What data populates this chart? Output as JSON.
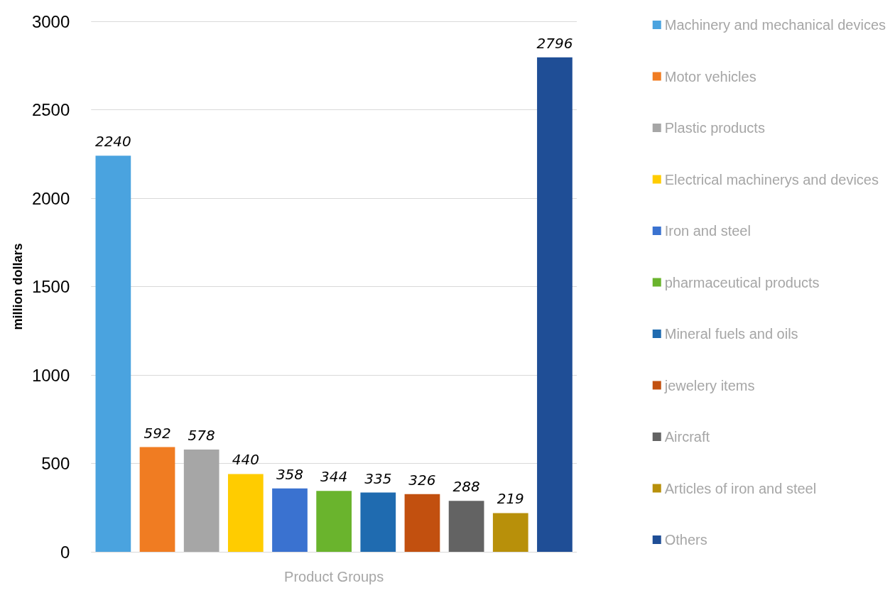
{
  "chart_data": {
    "type": "bar",
    "xlabel": "Product Groups",
    "ylabel": "million dollars",
    "categories": [
      null,
      null,
      null,
      null,
      null,
      null,
      null,
      null,
      null,
      null,
      null
    ],
    "series": [
      {
        "name": "Machinery and mechanical devices",
        "color": "#4aa3df",
        "values": [
          2240,
          null,
          null,
          null,
          null,
          null,
          null,
          null,
          null,
          null,
          null
        ]
      },
      {
        "name": "Motor vehicles",
        "color": "#f07c22",
        "values": [
          null,
          592,
          null,
          null,
          null,
          null,
          null,
          null,
          null,
          null,
          null
        ]
      },
      {
        "name": "Plastic products",
        "color": "#a6a6a6",
        "values": [
          null,
          null,
          578,
          null,
          null,
          null,
          null,
          null,
          null,
          null,
          null
        ]
      },
      {
        "name": "Electrical machinerys and devices",
        "color": "#ffcc00",
        "values": [
          null,
          null,
          null,
          440,
          null,
          null,
          null,
          null,
          null,
          null,
          null
        ]
      },
      {
        "name": "Iron and steel",
        "color": "#3a72d0",
        "values": [
          null,
          null,
          null,
          null,
          358,
          null,
          null,
          null,
          null,
          null,
          null
        ]
      },
      {
        "name": "pharmaceutical products",
        "color": "#6ab42d",
        "values": [
          null,
          null,
          null,
          null,
          null,
          344,
          null,
          null,
          null,
          null,
          null
        ]
      },
      {
        "name": "Mineral fuels and oils",
        "color": "#1f6bb0",
        "values": [
          null,
          null,
          null,
          null,
          null,
          null,
          335,
          null,
          null,
          null,
          null
        ]
      },
      {
        "name": "jewelery items",
        "color": "#c2500f",
        "values": [
          null,
          null,
          null,
          null,
          null,
          null,
          null,
          326,
          null,
          null,
          null
        ]
      },
      {
        "name": "Aircraft",
        "color": "#636363",
        "values": [
          null,
          null,
          null,
          null,
          null,
          null,
          null,
          null,
          288,
          null,
          null
        ]
      },
      {
        "name": "Articles of iron and steel",
        "color": "#b8900a",
        "values": [
          null,
          null,
          null,
          null,
          null,
          null,
          null,
          null,
          null,
          219,
          null
        ]
      },
      {
        "name": "Others",
        "color": "#1f4e96",
        "values": [
          null,
          null,
          null,
          null,
          null,
          null,
          null,
          null,
          null,
          null,
          2796
        ]
      }
    ],
    "ylim": [
      0,
      3000
    ],
    "yticks": [
      0,
      500,
      1000,
      1500,
      2000,
      2500,
      3000
    ],
    "grid": "y",
    "legend": "right",
    "data_labels": true
  }
}
